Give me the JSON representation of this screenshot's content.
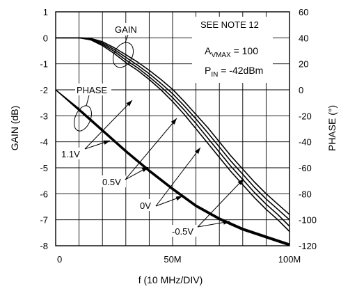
{
  "chart_data": {
    "type": "line",
    "xlabel": "f (10 MHz/DIV)",
    "ylabel_left": "GAIN (dB)",
    "ylabel_right": "PHASE (°)",
    "xlim": [
      0,
      100
    ],
    "ylim_left": [
      -8,
      1
    ],
    "ylim_right": [
      -120,
      60
    ],
    "grid": true,
    "x_tick_labels": [
      {
        "value": 0,
        "label": "0"
      },
      {
        "value": 50,
        "label": "50M"
      },
      {
        "value": 100,
        "label": "100M"
      }
    ],
    "y_left_ticks": [
      1,
      0,
      -1,
      -2,
      -3,
      -4,
      -5,
      -6,
      -7,
      -8
    ],
    "y_right_ticks": [
      60,
      40,
      20,
      0,
      -20,
      -40,
      -60,
      -80,
      -100,
      -120
    ],
    "gain_series": [
      {
        "control_voltage": "1.1V",
        "x": [
          0,
          10,
          15,
          20,
          25,
          30,
          35,
          40,
          45,
          50,
          55,
          60,
          65,
          70,
          75,
          80,
          85,
          90,
          95,
          100
        ],
        "y": [
          0,
          0,
          -0.08,
          -0.3,
          -0.6,
          -0.95,
          -1.25,
          -1.6,
          -2.0,
          -2.45,
          -2.95,
          -3.5,
          -4.05,
          -4.6,
          -5.15,
          -5.65,
          -6.15,
          -6.6,
          -7.0,
          -7.45
        ]
      },
      {
        "control_voltage": "0.5V",
        "x": [
          0,
          10,
          15,
          20,
          25,
          30,
          35,
          40,
          45,
          50,
          55,
          60,
          65,
          70,
          75,
          80,
          85,
          90,
          95,
          100
        ],
        "y": [
          0,
          0,
          -0.06,
          -0.25,
          -0.52,
          -0.85,
          -1.15,
          -1.5,
          -1.88,
          -2.3,
          -2.78,
          -3.3,
          -3.85,
          -4.4,
          -4.95,
          -5.45,
          -5.95,
          -6.4,
          -6.8,
          -7.25
        ]
      },
      {
        "control_voltage": "0V",
        "x": [
          0,
          10,
          15,
          20,
          25,
          30,
          35,
          40,
          45,
          50,
          55,
          60,
          65,
          70,
          75,
          80,
          85,
          90,
          95,
          100
        ],
        "y": [
          0,
          0,
          -0.04,
          -0.2,
          -0.45,
          -0.75,
          -1.05,
          -1.38,
          -1.75,
          -2.15,
          -2.62,
          -3.12,
          -3.65,
          -4.2,
          -4.75,
          -5.25,
          -5.75,
          -6.2,
          -6.6,
          -7.0
        ]
      },
      {
        "control_voltage": "-0.5V",
        "x": [
          0,
          10,
          15,
          20,
          25,
          30,
          35,
          40,
          45,
          50,
          55,
          60,
          65,
          70,
          75,
          80,
          85,
          90,
          95,
          100
        ],
        "y": [
          0,
          0,
          -0.02,
          -0.15,
          -0.38,
          -0.65,
          -0.93,
          -1.25,
          -1.6,
          -1.98,
          -2.45,
          -2.95,
          -3.45,
          -4.0,
          -4.55,
          -5.05,
          -5.55,
          -6.0,
          -6.4,
          -6.8
        ]
      }
    ],
    "phase_series": [
      {
        "control_voltage": "1.1V",
        "x": [
          0,
          10,
          20,
          30,
          40,
          50,
          60,
          70,
          80,
          90,
          100
        ],
        "y": [
          0,
          -16,
          -32,
          -48,
          -63,
          -77,
          -90,
          -100,
          -108,
          -114,
          -120
        ]
      },
      {
        "control_voltage": "0.5V",
        "x": [
          0,
          10,
          20,
          30,
          40,
          50,
          60,
          70,
          80,
          90,
          100
        ],
        "y": [
          0,
          -15.5,
          -31.5,
          -47.5,
          -62.5,
          -76.5,
          -89.5,
          -99.5,
          -107.5,
          -113.5,
          -119.5
        ]
      },
      {
        "control_voltage": "0V",
        "x": [
          0,
          10,
          20,
          30,
          40,
          50,
          60,
          70,
          80,
          90,
          100
        ],
        "y": [
          0,
          -15,
          -31,
          -47,
          -62,
          -76,
          -89,
          -99,
          -107,
          -113,
          -119
        ]
      },
      {
        "control_voltage": "-0.5V",
        "x": [
          0,
          10,
          20,
          30,
          40,
          50,
          60,
          70,
          80,
          90,
          100
        ],
        "y": [
          0,
          -14.5,
          -30.5,
          -46.5,
          -61.5,
          -75.5,
          -88.5,
          -98.5,
          -106.5,
          -112.5,
          -118.5
        ]
      }
    ],
    "annotations": {
      "note": "SEE NOTE 12",
      "avmax": {
        "base": "A",
        "sub": "VMAX",
        "rest": " = 100"
      },
      "pin": {
        "base": "P",
        "sub": "IN",
        "rest": " = -42dBm"
      },
      "gain_label": "GAIN",
      "phase_label": "PHASE",
      "voltage_labels": [
        "1.1V",
        "0.5V",
        "0V",
        "-0.5V"
      ]
    }
  }
}
